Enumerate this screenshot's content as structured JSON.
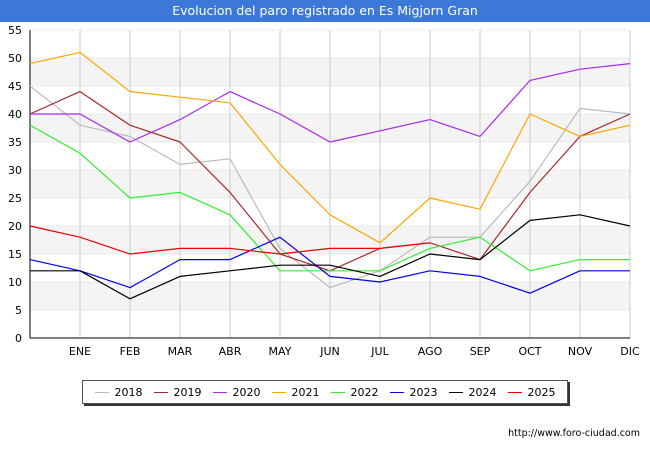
{
  "chart_data": {
    "type": "line",
    "title": "Evolucion del paro registrado en Es Migjorn Gran",
    "xlabel": "",
    "ylabel": "",
    "ylim": [
      0,
      55
    ],
    "yticks": [
      0,
      5,
      10,
      15,
      20,
      25,
      30,
      35,
      40,
      45,
      50,
      55
    ],
    "categories": [
      "",
      "ENE",
      "FEB",
      "MAR",
      "ABR",
      "MAY",
      "JUN",
      "JUL",
      "AGO",
      "SEP",
      "OCT",
      "NOV",
      "DIC"
    ],
    "series": [
      {
        "name": "2018",
        "color": "#bbbbbb",
        "values": [
          45,
          38,
          36,
          31,
          32,
          16,
          9,
          12,
          18,
          18,
          28,
          41,
          40
        ]
      },
      {
        "name": "2019",
        "color": "#a52a2a",
        "values": [
          40,
          44,
          38,
          35,
          26,
          15,
          12,
          16,
          17,
          14,
          26,
          36,
          40
        ]
      },
      {
        "name": "2020",
        "color": "#a52ae8",
        "values": [
          40,
          40,
          35,
          39,
          44,
          40,
          35,
          37,
          39,
          36,
          46,
          48,
          49
        ]
      },
      {
        "name": "2021",
        "color": "#ffa500",
        "values": [
          49,
          51,
          44,
          43,
          42,
          31,
          22,
          17,
          25,
          23,
          40,
          36,
          38
        ]
      },
      {
        "name": "2022",
        "color": "#33ee33",
        "values": [
          38,
          33,
          25,
          26,
          22,
          12,
          12,
          12,
          16,
          18,
          12,
          14,
          14
        ]
      },
      {
        "name": "2023",
        "color": "#0000ee",
        "values": [
          14,
          12,
          9,
          14,
          14,
          18,
          11,
          10,
          12,
          11,
          8,
          12,
          12
        ]
      },
      {
        "name": "2024",
        "color": "#000000",
        "values": [
          12,
          12,
          7,
          11,
          12,
          13,
          13,
          11,
          15,
          14,
          21,
          22,
          20
        ]
      },
      {
        "name": "2025",
        "color": "#ee0000",
        "values": [
          20,
          18,
          15,
          16,
          16,
          15,
          16,
          16,
          17,
          null,
          null,
          null,
          null
        ]
      }
    ],
    "grid": true,
    "legend_position": "bottom"
  },
  "source": "http://www.foro-ciudad.com"
}
